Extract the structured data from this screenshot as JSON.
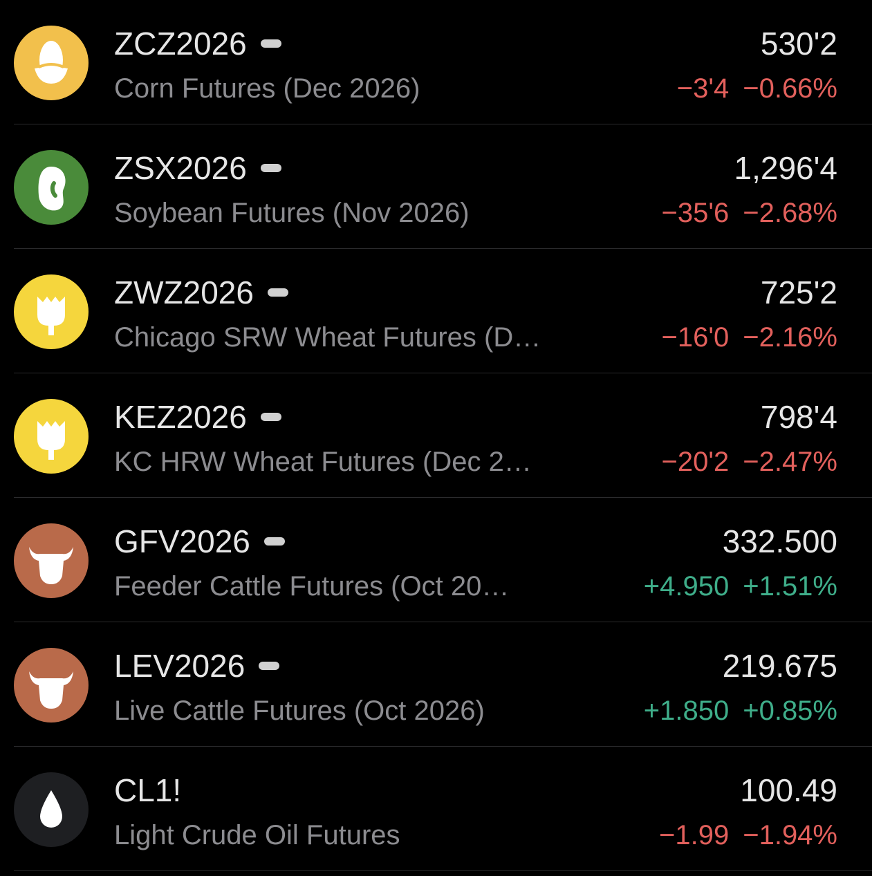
{
  "watchlist": {
    "rows": [
      {
        "symbol": "ZCZ2026",
        "name": "Corn Futures (Dec 2026)",
        "price": "530'2",
        "change": "−3'4",
        "change_percent": "−0.66%"
      },
      {
        "symbol": "ZSX2026",
        "name": "Soybean Futures (Nov 2026)",
        "price": "1,296'4",
        "change": "−35'6",
        "change_percent": "−2.68%"
      },
      {
        "symbol": "ZWZ2026",
        "name": "Chicago SRW Wheat Futures (D…",
        "price": "725'2",
        "change": "−16'0",
        "change_percent": "−2.16%"
      },
      {
        "symbol": "KEZ2026",
        "name": "KC HRW Wheat Futures (Dec 2…",
        "price": "798'4",
        "change": "−20'2",
        "change_percent": "−2.47%"
      },
      {
        "symbol": "GFV2026",
        "name": "Feeder Cattle Futures (Oct 20…",
        "price": "332.500",
        "change": "+4.950",
        "change_percent": "+1.51%"
      },
      {
        "symbol": "LEV2026",
        "name": "Live Cattle Futures (Oct 2026)",
        "price": "219.675",
        "change": "+1.850",
        "change_percent": "+0.85%"
      },
      {
        "symbol": "CL1!",
        "name": "Light Crude Oil Futures",
        "price": "100.49",
        "change": "−1.99",
        "change_percent": "−1.94%"
      }
    ]
  }
}
